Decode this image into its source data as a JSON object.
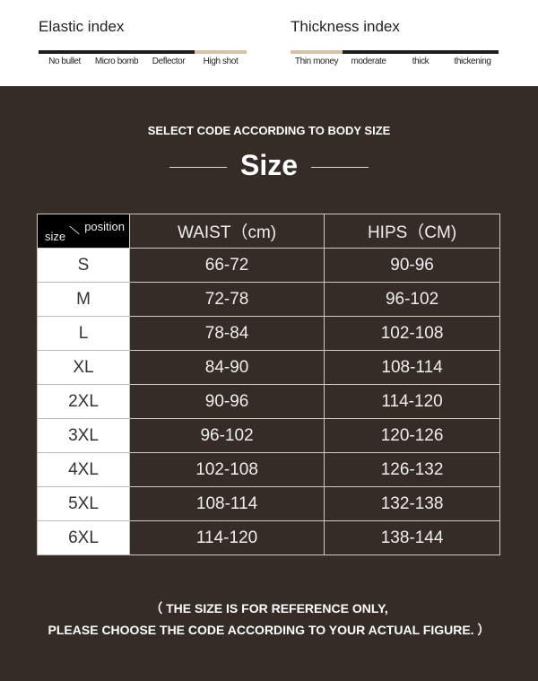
{
  "elastic": {
    "title": "Elastic index",
    "labels": [
      "No bullet",
      "Micro bomb",
      "Deflector",
      "High shot"
    ],
    "selected_index": 3
  },
  "thickness": {
    "title": "Thickness index",
    "labels": [
      "Thin money",
      "moderate",
      "thick",
      "thickening"
    ],
    "selected_index": 0
  },
  "colors": {
    "background": "#352c28",
    "highlight": "#d6c2a6",
    "bar_dark": "#1e1e1e"
  },
  "subtitle": "SELECT CODE ACCORDING TO BODY SIZE",
  "title": "Size",
  "table": {
    "corner_size": "size",
    "corner_position": "position",
    "headers": [
      "WAIST（cm)",
      "HIPS（CM)"
    ],
    "rows": [
      [
        "S",
        "66-72",
        "90-96"
      ],
      [
        "M",
        "72-78",
        "96-102"
      ],
      [
        "L",
        "78-84",
        "102-108"
      ],
      [
        "XL",
        "84-90",
        "108-114"
      ],
      [
        "2XL",
        "90-96",
        "114-120"
      ],
      [
        "3XL",
        "96-102",
        "120-126"
      ],
      [
        "4XL",
        "102-108",
        "126-132"
      ],
      [
        "5XL",
        "108-114",
        "132-138"
      ],
      [
        "6XL",
        "114-120",
        "138-144"
      ]
    ]
  },
  "note": [
    "（ THE SIZE IS FOR REFERENCE ONLY,",
    "PLEASE CHOOSE THE CODE ACCORDING TO YOUR ACTUAL FIGURE. ）"
  ]
}
